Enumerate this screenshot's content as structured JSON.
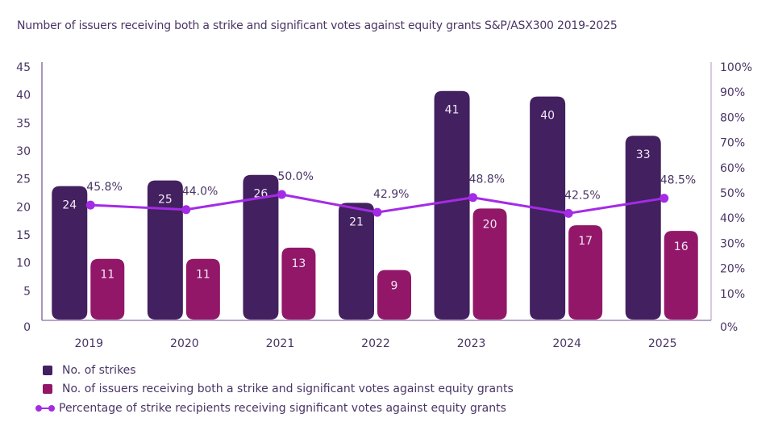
{
  "chart_data": {
    "type": "bar",
    "title": "Number of issuers receiving both a strike and significant votes against equity grants S&P/ASX300 2019-2025",
    "categories": [
      "2019",
      "2020",
      "2021",
      "2022",
      "2023",
      "2024",
      "2025"
    ],
    "series": [
      {
        "name": "No. of strikes",
        "type": "bar",
        "axis": "left",
        "color": "#43205f",
        "values": [
          24,
          25,
          26,
          21,
          41,
          40,
          33
        ]
      },
      {
        "name": "No. of issuers receiving both a strike and significant votes against equity grants",
        "type": "bar",
        "axis": "left",
        "color": "#921768",
        "values": [
          11,
          11,
          13,
          9,
          20,
          17,
          16
        ]
      },
      {
        "name": "Percentage of strike recipients receiving significant votes against equity grants",
        "type": "line",
        "axis": "right",
        "color": "#a42be6",
        "values": [
          45.8,
          44.0,
          50.0,
          42.9,
          48.8,
          42.5,
          48.5
        ],
        "labels": [
          "45.8%",
          "44.0%",
          "50.0%",
          "42.9%",
          "48.8%",
          "42.5%",
          "48.5%"
        ]
      }
    ],
    "left_axis": {
      "ylim": [
        0,
        45
      ],
      "ticks": [
        "0",
        "5",
        "10",
        "15",
        "20",
        "25",
        "30",
        "35",
        "40",
        "45"
      ]
    },
    "right_axis": {
      "ylim": [
        0,
        100
      ],
      "ticks": [
        "0%",
        "10%",
        "20%",
        "30%",
        "40%",
        "50%",
        "60%",
        "70%",
        "80%",
        "90%",
        "100%"
      ]
    },
    "xlabel": "",
    "ylabel": "",
    "grid": false,
    "legend_position": "bottom-left"
  }
}
